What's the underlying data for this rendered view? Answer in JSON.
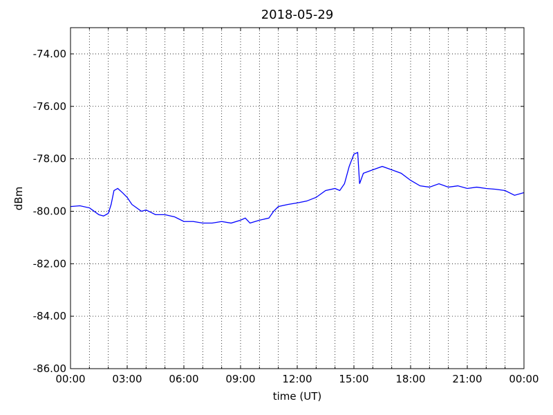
{
  "chart_data": {
    "type": "line",
    "title": "2018-05-29",
    "xlabel": "time (UT)",
    "ylabel": "dBm",
    "x": [
      0,
      0.5,
      1,
      1.25,
      1.5,
      1.75,
      2,
      2.15,
      2.3,
      2.5,
      2.75,
      3,
      3.25,
      3.5,
      3.75,
      4,
      4.5,
      5,
      5.5,
      6,
      6.5,
      7,
      7.5,
      8,
      8.5,
      9,
      9.25,
      9.5,
      10,
      10.5,
      10.75,
      11,
      11.5,
      12,
      12.5,
      13,
      13.5,
      14,
      14.25,
      14.5,
      14.75,
      15,
      15.2,
      15.3,
      15.5,
      16,
      16.5,
      17,
      17.5,
      18,
      18.5,
      19,
      19.5,
      20,
      20.5,
      21,
      21.5,
      22,
      22.5,
      23,
      23.5,
      24
    ],
    "series": [
      {
        "color": "#0000ff",
        "values": [
          -79.82,
          -79.79,
          -79.87,
          -80.0,
          -80.13,
          -80.18,
          -80.08,
          -79.74,
          -79.21,
          -79.13,
          -79.29,
          -79.47,
          -79.74,
          -79.87,
          -80.0,
          -79.95,
          -80.13,
          -80.13,
          -80.21,
          -80.39,
          -80.39,
          -80.45,
          -80.45,
          -80.39,
          -80.45,
          -80.34,
          -80.26,
          -80.45,
          -80.34,
          -80.26,
          -80.0,
          -79.82,
          -79.74,
          -79.68,
          -79.61,
          -79.47,
          -79.21,
          -79.13,
          -79.21,
          -78.95,
          -78.29,
          -77.82,
          -77.76,
          -78.95,
          -78.55,
          -78.42,
          -78.29,
          -78.42,
          -78.55,
          -78.82,
          -79.03,
          -79.08,
          -78.95,
          -79.08,
          -79.03,
          -79.13,
          -79.08,
          -79.13,
          -79.16,
          -79.21,
          -79.39,
          -79.29
        ]
      }
    ],
    "xlim": [
      0,
      24
    ],
    "ylim": [
      -86,
      -73
    ],
    "xticks": [
      {
        "value": 0,
        "label": "00:00"
      },
      {
        "value": 3,
        "label": "03:00"
      },
      {
        "value": 6,
        "label": "06:00"
      },
      {
        "value": 9,
        "label": "09:00"
      },
      {
        "value": 12,
        "label": "12:00"
      },
      {
        "value": 15,
        "label": "15:00"
      },
      {
        "value": 18,
        "label": "18:00"
      },
      {
        "value": 21,
        "label": "21:00"
      },
      {
        "value": 24,
        "label": "00:00"
      }
    ],
    "xminorticks": [
      1,
      2,
      4,
      5,
      7,
      8,
      10,
      11,
      13,
      14,
      16,
      17,
      19,
      20,
      22,
      23
    ],
    "yticks": [
      {
        "value": -86,
        "label": "-86.00"
      },
      {
        "value": -84,
        "label": "-84.00"
      },
      {
        "value": -82,
        "label": "-82.00"
      },
      {
        "value": -80,
        "label": "-80.00"
      },
      {
        "value": -78,
        "label": "-78.00"
      },
      {
        "value": -76,
        "label": "-76.00"
      },
      {
        "value": -74,
        "label": "-74.00"
      }
    ],
    "grid": true
  }
}
